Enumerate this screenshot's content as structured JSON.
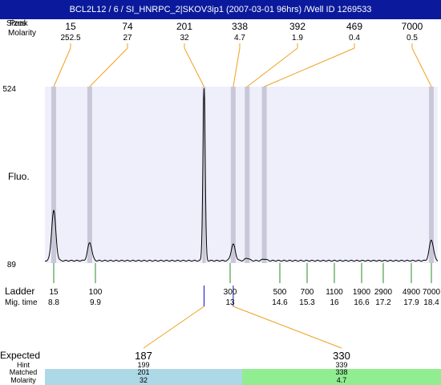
{
  "header": {
    "title": "BCL2L12 / 6 / SI_HNRPC_2|SKOV3ip1 (2007-03-01 96hrs) /Well ID 1269533"
  },
  "labels": {
    "peak_ghost": "Peak",
    "size": "Sizes",
    "molarity": "Molarity",
    "fluo": "Fluo.",
    "ladder": "Ladder",
    "mig_time": "Mig. time",
    "expected": "Expected",
    "hint": "Hint",
    "matched": "Matched",
    "molarity_bottom": "Molarity"
  },
  "colors": {
    "header_bg": "#0b1a9c",
    "plot_bg": "#efeffb",
    "marker_band": "#c8c8d8",
    "leader_line": "#f0a020",
    "ladder_tick": "#2a8a2a",
    "sample_tick": "#1010c0",
    "expected_text": "#e01010",
    "band_blue": "#add8e6",
    "band_green": "#90ee90"
  },
  "chart_data": {
    "type": "line",
    "title": "BCL2L12 / 6 / SI_HNRPC_2|SKOV3ip1 (2007-03-01 96hrs) /Well ID 1269533",
    "ylabel": "Fluo.",
    "ylim": [
      89,
      524
    ],
    "y_ticks": [
      "524",
      "89"
    ],
    "peaks": [
      {
        "size": "15",
        "molarity": "252.5",
        "mig_time": 8.8,
        "height": 0.29
      },
      {
        "size": "74",
        "molarity": "27",
        "mig_time": 9.75,
        "height": 0.105
      },
      {
        "size": "201",
        "molarity": "32",
        "mig_time": 12.4,
        "height": 1.0
      },
      {
        "size": "338",
        "molarity": "4.7",
        "mig_time": 13.1,
        "height": 0.095
      },
      {
        "size": "392",
        "molarity": "1.9",
        "mig_time": 13.55,
        "height": 0.015
      },
      {
        "size": "469",
        "molarity": "0.4",
        "mig_time": 14.1,
        "height": 0.01
      },
      {
        "size": "7000",
        "molarity": "0.5",
        "mig_time": 18.4,
        "height": 0.12
      }
    ],
    "ladder": [
      {
        "size": "15",
        "mig_time": "8.8"
      },
      {
        "size": "100",
        "mig_time": "9.9"
      },
      {
        "size": "300",
        "mig_time": "13"
      },
      {
        "size": "500",
        "mig_time": "14.6"
      },
      {
        "size": "700",
        "mig_time": "15.3"
      },
      {
        "size": "1100",
        "mig_time": "16"
      },
      {
        "size": "1900",
        "mig_time": "16.6"
      },
      {
        "size": "2900",
        "mig_time": "17.2"
      },
      {
        "size": "4900",
        "mig_time": "17.9"
      },
      {
        "size": "7000",
        "mig_time": "18.4"
      }
    ],
    "expected": [
      {
        "expected": "187",
        "hint": "199",
        "matched": "201",
        "molarity": "32",
        "mig_time": 12.4,
        "color": "#add8e6"
      },
      {
        "expected": "330",
        "hint": "339",
        "matched": "338",
        "molarity": "4.7",
        "mig_time": 13.1,
        "color": "#90ee90"
      }
    ]
  }
}
